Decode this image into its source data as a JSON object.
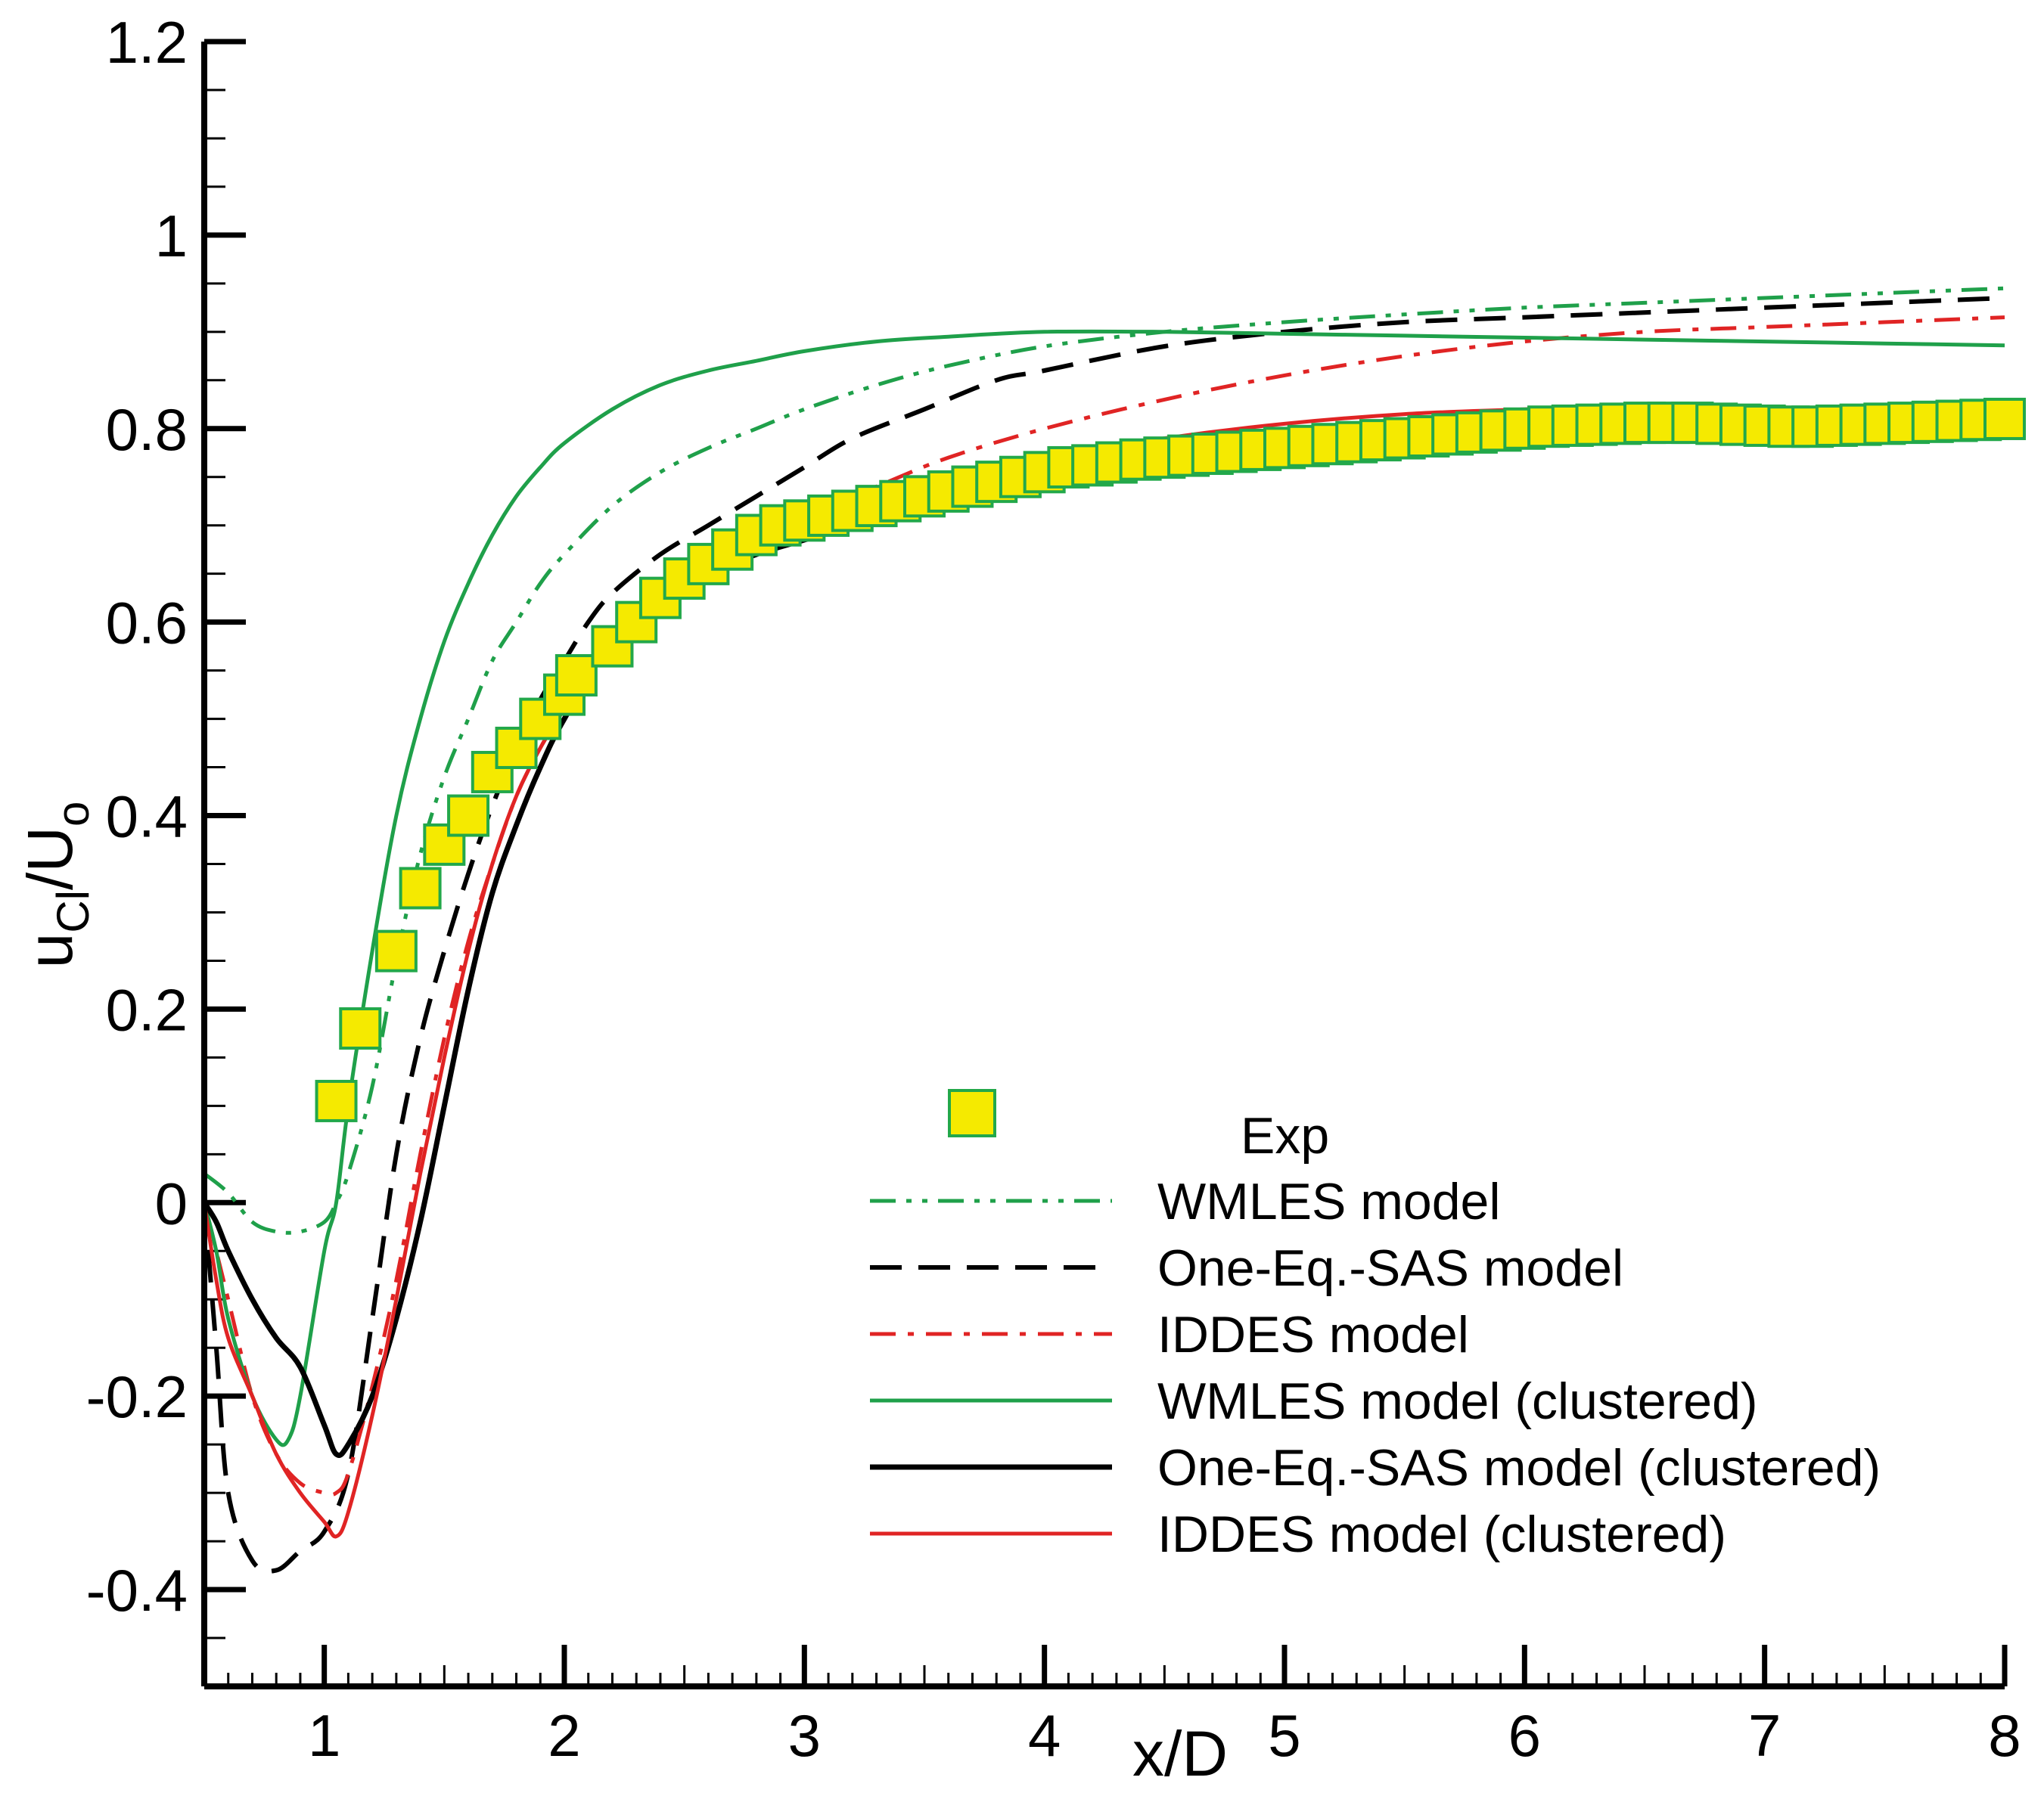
{
  "chart_data": {
    "type": "line",
    "title": "",
    "xlabel": "x/D",
    "ylabel_main": "u",
    "ylabel_sub1": "Cl",
    "ylabel_mid": "/U",
    "ylabel_sub2": "o",
    "xlim": [
      0.5,
      8
    ],
    "ylim": [
      -0.5,
      1.2
    ],
    "xticks": [
      1,
      2,
      3,
      4,
      5,
      6,
      7,
      8
    ],
    "xtick_labels": [
      "1",
      "2",
      "3",
      "4",
      "5",
      "6",
      "7",
      "8"
    ],
    "yticks": [
      -0.4,
      -0.2,
      0,
      0.2,
      0.4,
      0.6,
      0.8,
      1,
      1.2
    ],
    "ytick_labels": [
      "-0.4",
      "-0.2",
      "0",
      "0.2",
      "0.4",
      "0.6",
      "0.8",
      "1",
      "1.2"
    ],
    "legend_position": "lower-right",
    "experimental": {
      "name": "Exp",
      "marker": "square",
      "fill_color": "#f5ea00",
      "edge_color": "#23a84a",
      "x": [
        1.05,
        1.15,
        1.3,
        1.4,
        1.5,
        1.6,
        1.7,
        1.8,
        1.9,
        2.0,
        2.05,
        2.2,
        2.3,
        2.4,
        2.5,
        2.6,
        2.7,
        2.8,
        2.9,
        3.0,
        3.1,
        3.2,
        3.3,
        3.4,
        3.5,
        3.6,
        3.7,
        3.8,
        3.9,
        4.0,
        4.1,
        4.2,
        4.3,
        4.4,
        4.5,
        4.6,
        4.7,
        4.8,
        4.9,
        5.0,
        5.1,
        5.2,
        5.3,
        5.4,
        5.5,
        5.6,
        5.7,
        5.8,
        5.9,
        6.0,
        6.1,
        6.2,
        6.3,
        6.4,
        6.5,
        6.6,
        6.7,
        6.8,
        6.9,
        7.0,
        7.1,
        7.2,
        7.3,
        7.4,
        7.5,
        7.6,
        7.7,
        7.8,
        7.9,
        8.0
      ],
      "y": [
        0.105,
        0.18,
        0.26,
        0.325,
        0.37,
        0.4,
        0.445,
        0.47,
        0.5,
        0.525,
        0.545,
        0.575,
        0.6,
        0.625,
        0.645,
        0.66,
        0.675,
        0.69,
        0.7,
        0.705,
        0.71,
        0.715,
        0.72,
        0.725,
        0.73,
        0.735,
        0.74,
        0.745,
        0.75,
        0.755,
        0.76,
        0.762,
        0.765,
        0.768,
        0.77,
        0.772,
        0.774,
        0.776,
        0.778,
        0.78,
        0.782,
        0.784,
        0.786,
        0.788,
        0.79,
        0.792,
        0.794,
        0.796,
        0.798,
        0.8,
        0.802,
        0.803,
        0.804,
        0.805,
        0.806,
        0.806,
        0.806,
        0.805,
        0.804,
        0.803,
        0.802,
        0.802,
        0.803,
        0.804,
        0.805,
        0.806,
        0.807,
        0.808,
        0.809,
        0.81
      ]
    },
    "series": [
      {
        "name": "WMLES model",
        "color": "#1fa04a",
        "dash": "dashdotdot",
        "width": 5,
        "x": [
          0.5,
          0.6,
          0.7,
          0.8,
          0.9,
          1.0,
          1.05,
          1.1,
          1.2,
          1.3,
          1.4,
          1.5,
          1.6,
          1.7,
          1.8,
          1.9,
          2.0,
          2.2,
          2.4,
          2.6,
          2.8,
          3.0,
          3.3,
          3.6,
          4.0,
          4.5,
          5.0,
          5.5,
          6.0,
          6.5,
          7.0,
          7.5,
          8.0
        ],
        "y": [
          0.03,
          0.01,
          -0.02,
          -0.03,
          -0.03,
          -0.02,
          0.0,
          0.03,
          0.12,
          0.25,
          0.36,
          0.44,
          0.5,
          0.56,
          0.6,
          0.64,
          0.67,
          0.72,
          0.755,
          0.78,
          0.8,
          0.82,
          0.845,
          0.865,
          0.885,
          0.9,
          0.91,
          0.918,
          0.925,
          0.93,
          0.935,
          0.94,
          0.945
        ]
      },
      {
        "name": "One-Eq.-SAS model",
        "color": "#000000",
        "dash": "dashed",
        "width": 6,
        "x": [
          0.5,
          0.55,
          0.6,
          0.7,
          0.8,
          0.9,
          1.0,
          1.1,
          1.2,
          1.3,
          1.4,
          1.5,
          1.6,
          1.7,
          1.8,
          1.9,
          2.0,
          2.1,
          2.2,
          2.4,
          2.6,
          2.8,
          3.0,
          3.2,
          3.5,
          3.8,
          4.0,
          4.5,
          5.0,
          5.5,
          6.0,
          6.5,
          7.0,
          7.5,
          8.0
        ],
        "y": [
          0.0,
          -0.15,
          -0.3,
          -0.37,
          -0.38,
          -0.36,
          -0.34,
          -0.28,
          -0.12,
          0.05,
          0.17,
          0.26,
          0.34,
          0.41,
          0.47,
          0.52,
          0.56,
          0.6,
          0.63,
          0.67,
          0.7,
          0.73,
          0.76,
          0.79,
          0.82,
          0.85,
          0.86,
          0.885,
          0.9,
          0.91,
          0.915,
          0.92,
          0.925,
          0.93,
          0.935
        ]
      },
      {
        "name": "IDDES model",
        "color": "#e02424",
        "dash": "dashdot",
        "width": 5,
        "x": [
          0.5,
          0.6,
          0.7,
          0.8,
          0.9,
          1.0,
          1.05,
          1.1,
          1.2,
          1.3,
          1.4,
          1.5,
          1.6,
          1.7,
          1.8,
          1.9,
          2.0,
          2.2,
          2.4,
          2.6,
          2.8,
          3.0,
          3.3,
          3.6,
          4.0,
          4.5,
          5.0,
          5.5,
          6.0,
          6.5,
          7.0,
          7.5,
          8.0
        ],
        "y": [
          0.0,
          -0.1,
          -0.2,
          -0.26,
          -0.29,
          -0.3,
          -0.3,
          -0.28,
          -0.19,
          -0.08,
          0.05,
          0.17,
          0.27,
          0.35,
          0.42,
          0.47,
          0.51,
          0.58,
          0.63,
          0.66,
          0.69,
          0.71,
          0.74,
          0.77,
          0.8,
          0.83,
          0.855,
          0.875,
          0.89,
          0.9,
          0.905,
          0.91,
          0.915
        ]
      },
      {
        "name": "WMLES model (clustered)",
        "color": "#1fa04a",
        "dash": "solid",
        "width": 5,
        "x": [
          0.5,
          0.55,
          0.6,
          0.7,
          0.8,
          0.85,
          0.9,
          1.0,
          1.05,
          1.1,
          1.2,
          1.3,
          1.4,
          1.5,
          1.6,
          1.7,
          1.8,
          1.9,
          2.0,
          2.2,
          2.4,
          2.6,
          2.8,
          3.0,
          3.3,
          3.6,
          4.0,
          4.5,
          5.0,
          5.5,
          6.0,
          6.5,
          7.0,
          7.5,
          8.0
        ],
        "y": [
          0.0,
          -0.05,
          -0.12,
          -0.2,
          -0.245,
          -0.245,
          -0.2,
          -0.05,
          0.0,
          0.1,
          0.26,
          0.4,
          0.5,
          0.58,
          0.64,
          0.69,
          0.73,
          0.76,
          0.785,
          0.82,
          0.845,
          0.86,
          0.87,
          0.88,
          0.89,
          0.895,
          0.9,
          0.9,
          0.898,
          0.896,
          0.894,
          0.892,
          0.89,
          0.888,
          0.886
        ]
      },
      {
        "name": "One-Eq.-SAS model (clustered)",
        "color": "#000000",
        "dash": "solid",
        "width": 7,
        "x": [
          0.5,
          0.55,
          0.6,
          0.7,
          0.8,
          0.9,
          1.0,
          1.05,
          1.1,
          1.2,
          1.3,
          1.4,
          1.5,
          1.6,
          1.7,
          1.8,
          1.9,
          2.0,
          2.2,
          2.4,
          2.6,
          2.8,
          3.0,
          3.2,
          3.5,
          3.8,
          4.0,
          4.5,
          5.0,
          5.5,
          6.0,
          6.5,
          7.0,
          7.5,
          8.0
        ],
        "y": [
          0.0,
          -0.02,
          -0.05,
          -0.1,
          -0.14,
          -0.17,
          -0.23,
          -0.26,
          -0.25,
          -0.2,
          -0.12,
          -0.02,
          0.1,
          0.22,
          0.32,
          0.39,
          0.45,
          0.5,
          0.58,
          0.62,
          0.65,
          0.67,
          0.685,
          0.7,
          0.72,
          0.745,
          0.76,
          0.775,
          0.785,
          0.79,
          0.795,
          0.8,
          0.81,
          0.815,
          0.82
        ]
      },
      {
        "name": "IDDES model (clustered)",
        "color": "#e02424",
        "dash": "solid",
        "width": 5,
        "x": [
          0.5,
          0.55,
          0.6,
          0.7,
          0.8,
          0.9,
          1.0,
          1.05,
          1.1,
          1.2,
          1.3,
          1.4,
          1.5,
          1.6,
          1.7,
          1.8,
          1.9,
          2.0,
          2.2,
          2.4,
          2.6,
          2.8,
          3.0,
          3.2,
          3.5,
          3.8,
          4.0,
          4.5,
          5.0,
          5.5,
          6.0,
          6.5,
          7.0,
          7.5,
          8.0
        ],
        "y": [
          0.0,
          -0.08,
          -0.14,
          -0.2,
          -0.26,
          -0.3,
          -0.33,
          -0.345,
          -0.32,
          -0.22,
          -0.1,
          0.03,
          0.15,
          0.26,
          0.35,
          0.42,
          0.47,
          0.51,
          0.58,
          0.62,
          0.655,
          0.675,
          0.695,
          0.71,
          0.73,
          0.755,
          0.77,
          0.79,
          0.805,
          0.815,
          0.82,
          0.825,
          0.822,
          0.822,
          0.825
        ]
      }
    ]
  }
}
